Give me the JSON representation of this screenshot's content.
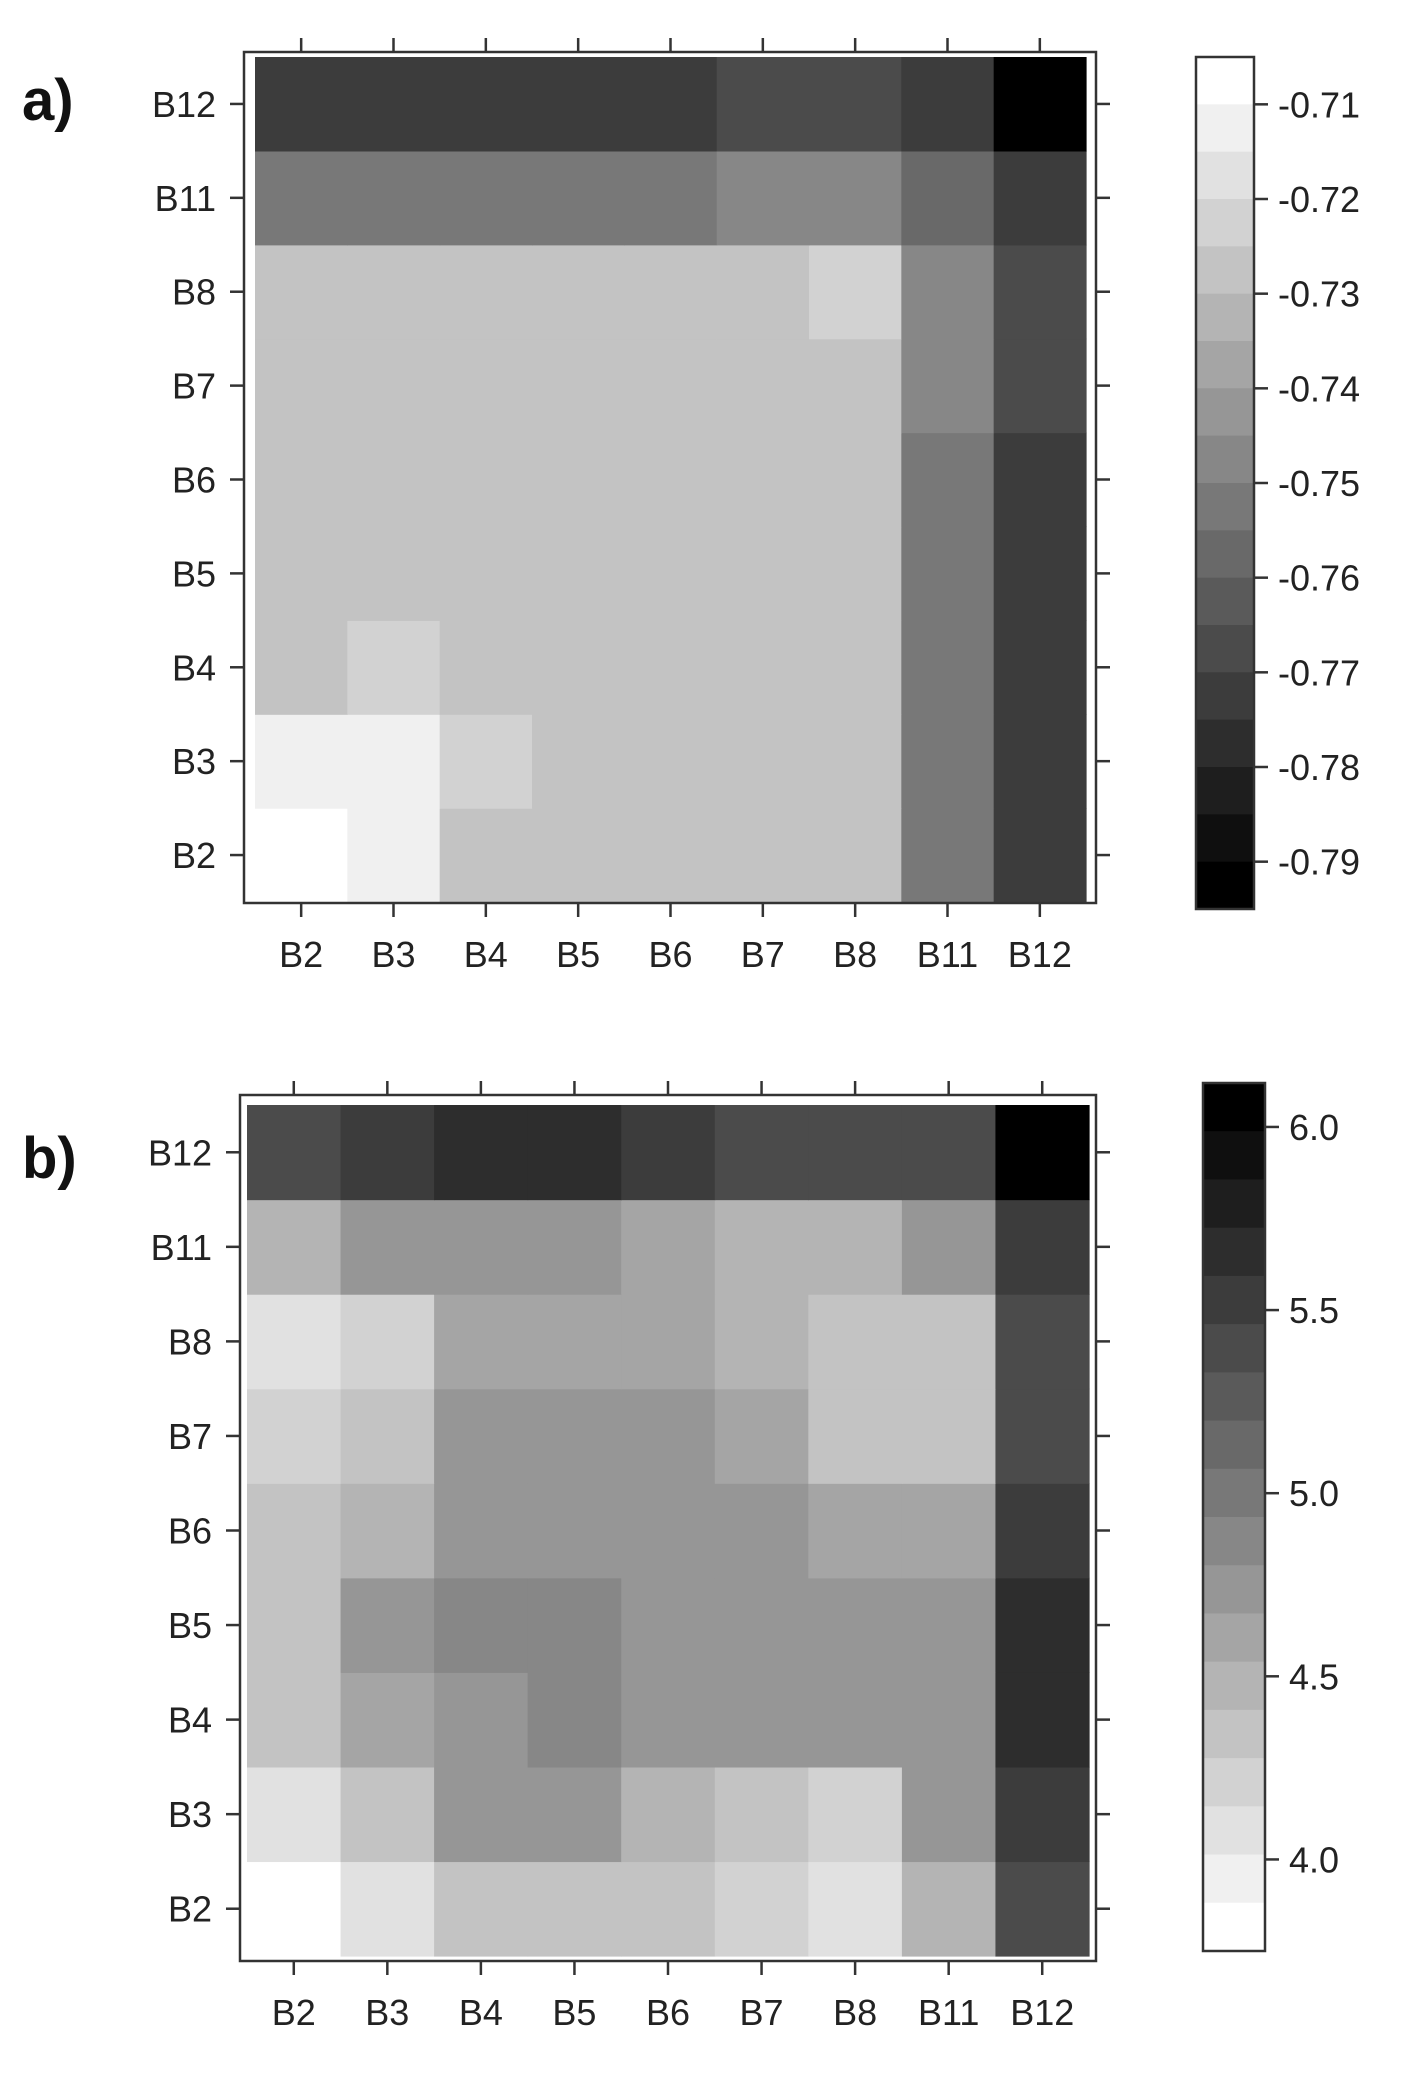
{
  "chart_data": [
    {
      "panel_label": "a)",
      "type": "heatmap",
      "x_categories": [
        "B2",
        "B3",
        "B4",
        "B5",
        "B6",
        "B7",
        "B8",
        "B11",
        "B12"
      ],
      "y_categories": [
        "B2",
        "B3",
        "B4",
        "B5",
        "B6",
        "B7",
        "B8",
        "B11",
        "B12"
      ],
      "values": [
        [
          -0.71,
          -0.715,
          -0.73,
          -0.73,
          -0.73,
          -0.73,
          -0.73,
          -0.755,
          -0.775
        ],
        [
          -0.715,
          -0.715,
          -0.725,
          -0.73,
          -0.73,
          -0.73,
          -0.73,
          -0.755,
          -0.775
        ],
        [
          -0.73,
          -0.725,
          -0.73,
          -0.73,
          -0.73,
          -0.73,
          -0.73,
          -0.755,
          -0.775
        ],
        [
          -0.73,
          -0.73,
          -0.73,
          -0.73,
          -0.73,
          -0.73,
          -0.73,
          -0.755,
          -0.775
        ],
        [
          -0.73,
          -0.73,
          -0.73,
          -0.73,
          -0.73,
          -0.73,
          -0.73,
          -0.755,
          -0.775
        ],
        [
          -0.73,
          -0.73,
          -0.73,
          -0.73,
          -0.73,
          -0.73,
          -0.73,
          -0.75,
          -0.77
        ],
        [
          -0.73,
          -0.73,
          -0.73,
          -0.73,
          -0.73,
          -0.73,
          -0.725,
          -0.75,
          -0.77
        ],
        [
          -0.755,
          -0.755,
          -0.755,
          -0.755,
          -0.755,
          -0.75,
          -0.75,
          -0.76,
          -0.775
        ],
        [
          -0.775,
          -0.775,
          -0.775,
          -0.775,
          -0.775,
          -0.77,
          -0.77,
          -0.775,
          -0.795
        ]
      ],
      "colorbar": {
        "min": -0.795,
        "max": -0.705,
        "ticks": [
          "-0.71",
          "-0.72",
          "-0.73",
          "-0.74",
          "-0.75",
          "-0.76",
          "-0.77",
          "-0.78",
          "-0.79"
        ],
        "tick_values": [
          -0.71,
          -0.72,
          -0.73,
          -0.74,
          -0.75,
          -0.76,
          -0.77,
          -0.78,
          -0.79
        ],
        "high_color": "#ffffff",
        "low_color": "#000000"
      }
    },
    {
      "panel_label": "b)",
      "type": "heatmap",
      "x_categories": [
        "B2",
        "B3",
        "B4",
        "B5",
        "B6",
        "B7",
        "B8",
        "B11",
        "B12"
      ],
      "y_categories": [
        "B2",
        "B3",
        "B4",
        "B5",
        "B6",
        "B7",
        "B8",
        "B11",
        "B12"
      ],
      "values": [
        [
          3.75,
          4.05,
          4.3,
          4.3,
          4.3,
          4.2,
          4.05,
          4.45,
          5.45
        ],
        [
          4.1,
          4.35,
          4.7,
          4.7,
          4.45,
          4.3,
          4.15,
          4.7,
          5.55
        ],
        [
          4.35,
          4.65,
          4.75,
          4.9,
          4.8,
          4.8,
          4.7,
          4.75,
          5.65
        ],
        [
          4.35,
          4.7,
          4.9,
          4.9,
          4.8,
          4.8,
          4.7,
          4.75,
          5.65
        ],
        [
          4.35,
          4.5,
          4.8,
          4.8,
          4.8,
          4.8,
          4.65,
          4.65,
          5.55
        ],
        [
          4.2,
          4.35,
          4.8,
          4.8,
          4.8,
          4.65,
          4.4,
          4.4,
          5.45
        ],
        [
          4.1,
          4.2,
          4.65,
          4.65,
          4.65,
          4.45,
          4.3,
          4.4,
          5.4
        ],
        [
          4.5,
          4.7,
          4.7,
          4.7,
          4.6,
          4.45,
          4.45,
          4.7,
          5.5
        ],
        [
          5.4,
          5.55,
          5.65,
          5.65,
          5.55,
          5.45,
          5.35,
          5.45,
          6.05
        ]
      ],
      "colorbar": {
        "min": 3.75,
        "max": 6.12,
        "ticks": [
          "6.0",
          "5.5",
          "5.0",
          "4.5",
          "4.0"
        ],
        "tick_values": [
          6.0,
          5.5,
          5.0,
          4.5,
          4.0
        ],
        "high_color": "#000000",
        "low_color": "#ffffff"
      }
    }
  ]
}
